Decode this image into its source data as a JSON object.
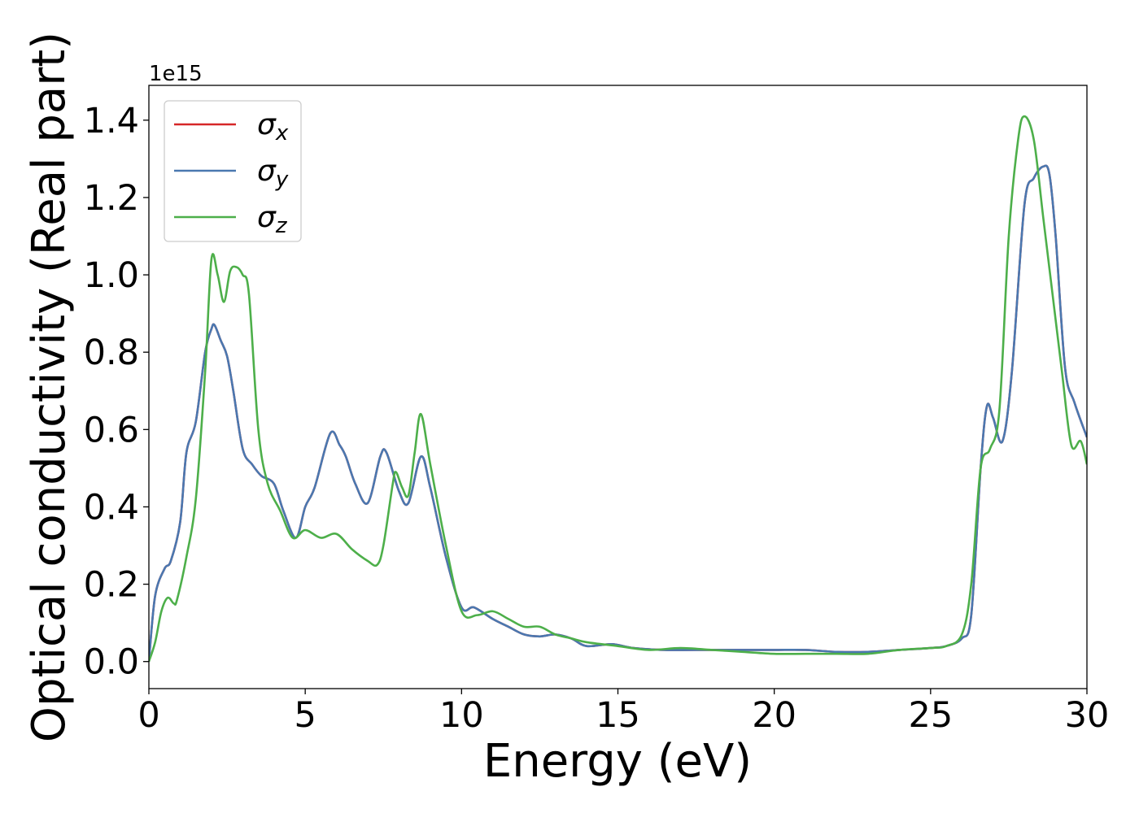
{
  "chart_data": {
    "type": "line",
    "title": "",
    "xlabel": "Energy (eV)",
    "ylabel": "Optical conductivity (Real part)",
    "offset_label": "1e15",
    "y_scale_factor": 1000000000000000.0,
    "xlim": [
      0,
      30
    ],
    "ylim": [
      -0.07,
      1.49
    ],
    "xticks": [
      0,
      5,
      10,
      15,
      20,
      25,
      30
    ],
    "xtick_labels": [
      "0",
      "5",
      "10",
      "15",
      "20",
      "25",
      "30"
    ],
    "yticks": [
      0.0,
      0.2,
      0.4,
      0.6,
      0.8,
      1.0,
      1.2,
      1.4
    ],
    "ytick_labels": [
      "0.0",
      "0.2",
      "0.4",
      "0.6",
      "0.8",
      "1.0",
      "1.2",
      "1.4"
    ],
    "grid": false,
    "legend_position": "top-left",
    "series": [
      {
        "name": "σx",
        "legend_base": "σ",
        "legend_sub": "x",
        "color": "#d62728",
        "x": [
          0,
          0.2,
          0.5,
          0.7,
          1.0,
          1.2,
          1.5,
          1.8,
          2.0,
          2.1,
          2.3,
          2.5,
          2.7,
          3.0,
          3.3,
          3.6,
          4.0,
          4.3,
          4.7,
          5.0,
          5.3,
          5.8,
          6.1,
          6.3,
          6.6,
          7.0,
          7.4,
          7.6,
          8.0,
          8.3,
          8.7,
          9.0,
          9.5,
          10.0,
          10.4,
          11.0,
          11.5,
          12.0,
          12.5,
          13.0,
          13.5,
          14.0,
          14.8,
          15.5,
          16.5,
          17.5,
          19.0,
          20.0,
          21.0,
          22.0,
          23.0,
          24.0,
          25.0,
          25.5,
          26.0,
          26.3,
          26.6,
          26.8,
          27.0,
          27.3,
          27.6,
          28.0,
          28.3,
          28.6,
          28.8,
          29.0,
          29.3,
          29.6,
          30.0
        ],
        "y": [
          0.0,
          0.17,
          0.24,
          0.26,
          0.36,
          0.54,
          0.62,
          0.8,
          0.86,
          0.87,
          0.83,
          0.79,
          0.7,
          0.55,
          0.51,
          0.48,
          0.46,
          0.39,
          0.32,
          0.4,
          0.45,
          0.59,
          0.56,
          0.53,
          0.46,
          0.41,
          0.53,
          0.54,
          0.44,
          0.41,
          0.53,
          0.45,
          0.27,
          0.14,
          0.14,
          0.11,
          0.09,
          0.07,
          0.065,
          0.07,
          0.06,
          0.04,
          0.045,
          0.035,
          0.03,
          0.03,
          0.03,
          0.03,
          0.03,
          0.025,
          0.025,
          0.03,
          0.035,
          0.04,
          0.06,
          0.12,
          0.5,
          0.66,
          0.63,
          0.57,
          0.75,
          1.18,
          1.25,
          1.28,
          1.26,
          1.1,
          0.76,
          0.67,
          0.58
        ]
      },
      {
        "name": "σy",
        "legend_base": "σ",
        "legend_sub": "y",
        "color": "#4a78b0",
        "x": [
          0,
          0.2,
          0.5,
          0.7,
          1.0,
          1.2,
          1.5,
          1.8,
          2.0,
          2.1,
          2.3,
          2.5,
          2.7,
          3.0,
          3.3,
          3.6,
          4.0,
          4.3,
          4.7,
          5.0,
          5.3,
          5.8,
          6.1,
          6.3,
          6.6,
          7.0,
          7.4,
          7.6,
          8.0,
          8.3,
          8.7,
          9.0,
          9.5,
          10.0,
          10.4,
          11.0,
          11.5,
          12.0,
          12.5,
          13.0,
          13.5,
          14.0,
          14.8,
          15.5,
          16.5,
          17.5,
          19.0,
          20.0,
          21.0,
          22.0,
          23.0,
          24.0,
          25.0,
          25.5,
          26.0,
          26.3,
          26.6,
          26.8,
          27.0,
          27.3,
          27.6,
          28.0,
          28.3,
          28.6,
          28.8,
          29.0,
          29.3,
          29.6,
          30.0
        ],
        "y": [
          0.0,
          0.17,
          0.24,
          0.26,
          0.36,
          0.54,
          0.62,
          0.8,
          0.86,
          0.87,
          0.83,
          0.79,
          0.7,
          0.55,
          0.51,
          0.48,
          0.46,
          0.39,
          0.32,
          0.4,
          0.45,
          0.59,
          0.56,
          0.53,
          0.46,
          0.41,
          0.53,
          0.54,
          0.44,
          0.41,
          0.53,
          0.45,
          0.27,
          0.14,
          0.14,
          0.11,
          0.09,
          0.07,
          0.065,
          0.07,
          0.06,
          0.04,
          0.045,
          0.035,
          0.03,
          0.03,
          0.03,
          0.03,
          0.03,
          0.025,
          0.025,
          0.03,
          0.035,
          0.04,
          0.06,
          0.12,
          0.5,
          0.66,
          0.63,
          0.57,
          0.75,
          1.18,
          1.25,
          1.28,
          1.26,
          1.1,
          0.76,
          0.67,
          0.58
        ]
      },
      {
        "name": "σz",
        "legend_base": "σ",
        "legend_sub": "z",
        "color": "#4daf4a",
        "x": [
          0,
          0.2,
          0.4,
          0.6,
          0.8,
          0.9,
          1.2,
          1.5,
          1.8,
          2.0,
          2.2,
          2.4,
          2.6,
          2.8,
          3.0,
          3.2,
          3.5,
          3.8,
          4.2,
          4.6,
          5.0,
          5.5,
          6.0,
          6.5,
          7.0,
          7.3,
          7.5,
          7.8,
          7.9,
          8.1,
          8.3,
          8.5,
          8.7,
          9.0,
          9.5,
          10.0,
          10.5,
          11.0,
          11.5,
          12.0,
          12.5,
          13.0,
          13.5,
          14.0,
          15.0,
          16.0,
          17.0,
          18.0,
          19.0,
          20.0,
          21.0,
          22.0,
          23.0,
          24.0,
          25.0,
          25.5,
          26.0,
          26.3,
          26.6,
          26.9,
          27.2,
          27.5,
          27.8,
          28.0,
          28.3,
          28.6,
          28.9,
          29.2,
          29.5,
          29.8,
          30.0
        ],
        "y": [
          0.0,
          0.05,
          0.13,
          0.165,
          0.15,
          0.16,
          0.27,
          0.42,
          0.75,
          1.04,
          1.0,
          0.93,
          1.01,
          1.02,
          1.0,
          0.95,
          0.6,
          0.46,
          0.39,
          0.32,
          0.34,
          0.32,
          0.33,
          0.29,
          0.26,
          0.25,
          0.3,
          0.46,
          0.49,
          0.45,
          0.43,
          0.54,
          0.64,
          0.51,
          0.3,
          0.13,
          0.12,
          0.13,
          0.11,
          0.09,
          0.09,
          0.07,
          0.06,
          0.05,
          0.04,
          0.03,
          0.035,
          0.03,
          0.025,
          0.02,
          0.02,
          0.02,
          0.02,
          0.03,
          0.035,
          0.04,
          0.07,
          0.2,
          0.5,
          0.55,
          0.65,
          1.1,
          1.35,
          1.41,
          1.35,
          1.15,
          0.95,
          0.75,
          0.56,
          0.57,
          0.51
        ]
      }
    ]
  }
}
